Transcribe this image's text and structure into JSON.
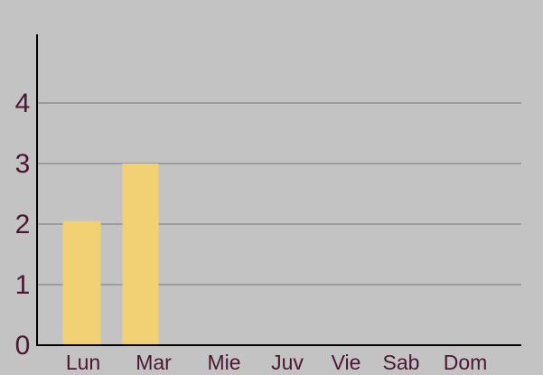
{
  "chart_data": {
    "type": "bar",
    "categories": [
      "Lun",
      "Mar",
      "Mie",
      "Juv",
      "Vie",
      "Sab",
      "Dom"
    ],
    "values": [
      2.05,
      3.0,
      0,
      0,
      0,
      0,
      0
    ],
    "yticks": [
      "0",
      "1",
      "2",
      "3",
      "4"
    ],
    "ylim": [
      0,
      5
    ],
    "grid": true,
    "legend": "none",
    "title": "",
    "xlabel": "",
    "ylabel": ""
  },
  "colors": {
    "background": "#c3c3c3",
    "bar": "#f2d174",
    "grid": "#8f8f8f",
    "axis": "#000000",
    "label": "#4b1632"
  }
}
